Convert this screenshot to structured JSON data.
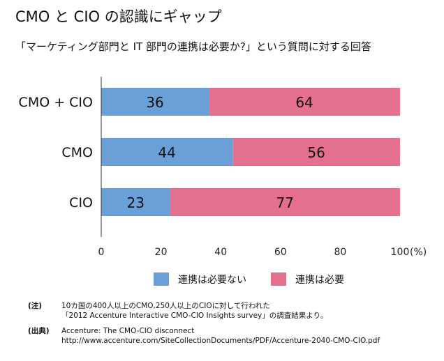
{
  "title": "CMO と CIO の認識にギャップ",
  "subtitle": "「マーケティング部門と IT 部門の連携は必要か?」という質問に対する回答",
  "chart_data": {
    "type": "bar",
    "orientation": "horizontal",
    "stacked": true,
    "categories": [
      "CMO + CIO",
      "CMO",
      "CIO"
    ],
    "series": [
      {
        "name": "連携は必要ない",
        "values": [
          36,
          44,
          23
        ],
        "color": "#6a9fd8"
      },
      {
        "name": "連携は必要",
        "values": [
          64,
          56,
          77
        ],
        "color": "#e5708d"
      }
    ],
    "xlim": [
      0,
      100
    ],
    "xticks": [
      0,
      20,
      40,
      60,
      80,
      100
    ],
    "xunit": "(%)",
    "legend_position": "bottom",
    "grid": false
  },
  "notes": {
    "note_label": "(注)",
    "note_line1": "10カ国の400人以上のCMO,250人以上のCIOに対して行われた",
    "note_line2": "「2012 Accenture Interactive CMO-CIO Insights survey」の調査結果より。",
    "source_label": "(出典)",
    "source_line1": "Accenture: The CMO-CIO disconnect",
    "source_line2": "http://www.accenture.com/SiteCollectionDocuments/PDF/Accenture-2040-CMO-CIO.pdf"
  }
}
